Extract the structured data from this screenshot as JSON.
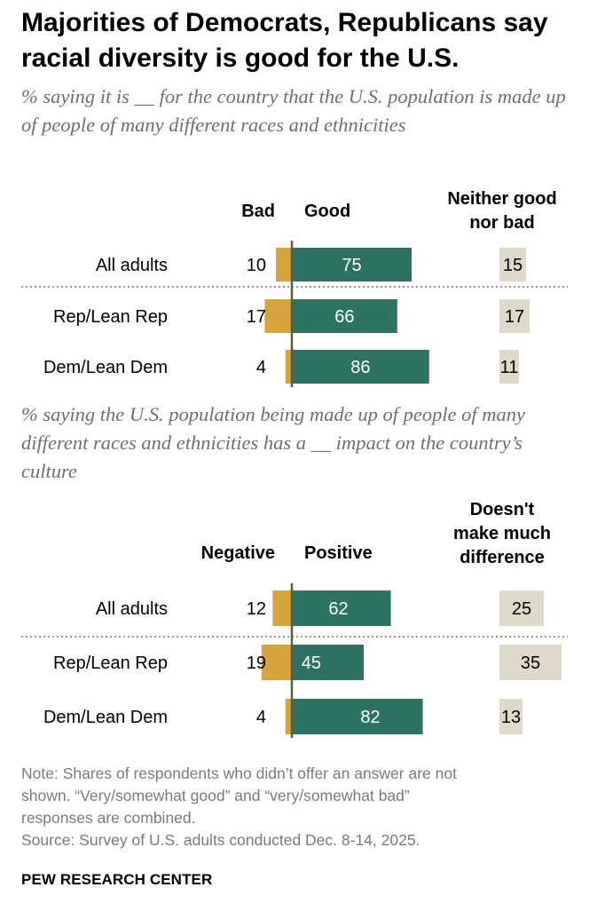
{
  "title": "Majorities of Democrats, Republicans say racial diversity is good for the U.S.",
  "chart_data": [
    {
      "type": "bar",
      "subtitle": "% saying it is __ for the country that the U.S. population is made up of people of many different races and ethnicities",
      "categories": [
        "All adults",
        "Rep/Lean Rep",
        "Dem/Lean Dem"
      ],
      "series": [
        {
          "name": "Bad",
          "values": [
            10,
            17,
            4
          ]
        },
        {
          "name": "Good",
          "values": [
            75,
            66,
            86
          ]
        },
        {
          "name": "Neither good nor bad",
          "values": [
            15,
            17,
            11
          ]
        }
      ],
      "header_lines": [
        [
          "Bad"
        ],
        [
          "Good"
        ],
        [
          "Neither good",
          "nor bad"
        ]
      ]
    },
    {
      "type": "bar",
      "subtitle": "% saying the U.S. population being made up of people of many different races and ethnicities has a __ impact on the country’s culture",
      "categories": [
        "All adults",
        "Rep/Lean Rep",
        "Dem/Lean Dem"
      ],
      "series": [
        {
          "name": "Negative",
          "values": [
            12,
            19,
            4
          ]
        },
        {
          "name": "Positive",
          "values": [
            62,
            45,
            82
          ]
        },
        {
          "name": "Doesn't make much difference",
          "values": [
            25,
            35,
            13
          ]
        }
      ],
      "header_lines": [
        [
          "Negative"
        ],
        [
          "Positive"
        ],
        [
          "Doesn't",
          "make much",
          "difference"
        ]
      ]
    }
  ],
  "note_lines": [
    "Note: Shares of respondents who didn’t offer an answer are not",
    "shown. “Very/somewhat good” and “very/somewhat bad”",
    "responses are combined.",
    "Source: Survey of U.S. adults conducted Dec. 8-14, 2025."
  ],
  "source_org": "PEW RESEARCH CENTER",
  "colors": {
    "negative": "#D5A43C",
    "positive": "#2E7261",
    "neutral": "#DDDAC9",
    "axis": "#5C5B35",
    "divider": "#999999",
    "subtitle": "#6F6F6F",
    "note": "#7A7A7A"
  }
}
